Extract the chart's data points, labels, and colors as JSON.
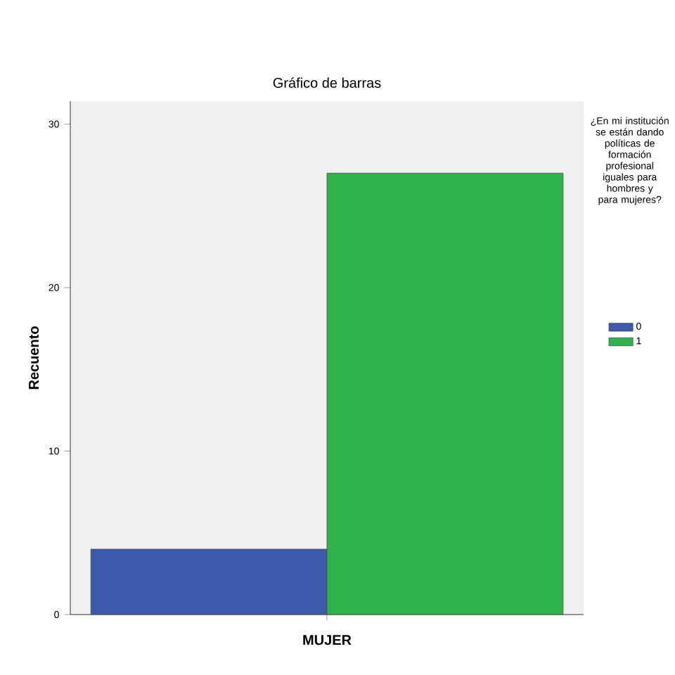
{
  "chart_data": {
    "type": "bar",
    "title": "Gráfico de barras",
    "xlabel": "MUJER",
    "ylabel": "Recuento",
    "legend_title": "¿En mi institución se están dando políticas de formación profesional iguales para hombres y para mujeres?",
    "categories": [
      null
    ],
    "series": [
      {
        "name": "0",
        "color": "#3e58ac",
        "values": [
          4
        ]
      },
      {
        "name": "1",
        "color": "#2db34a",
        "values": [
          27
        ]
      }
    ],
    "ylim": [
      0,
      31.4
    ],
    "yticks": [
      0,
      10,
      20,
      30
    ],
    "grid": false,
    "legend": "right",
    "tick_labels": "y"
  }
}
